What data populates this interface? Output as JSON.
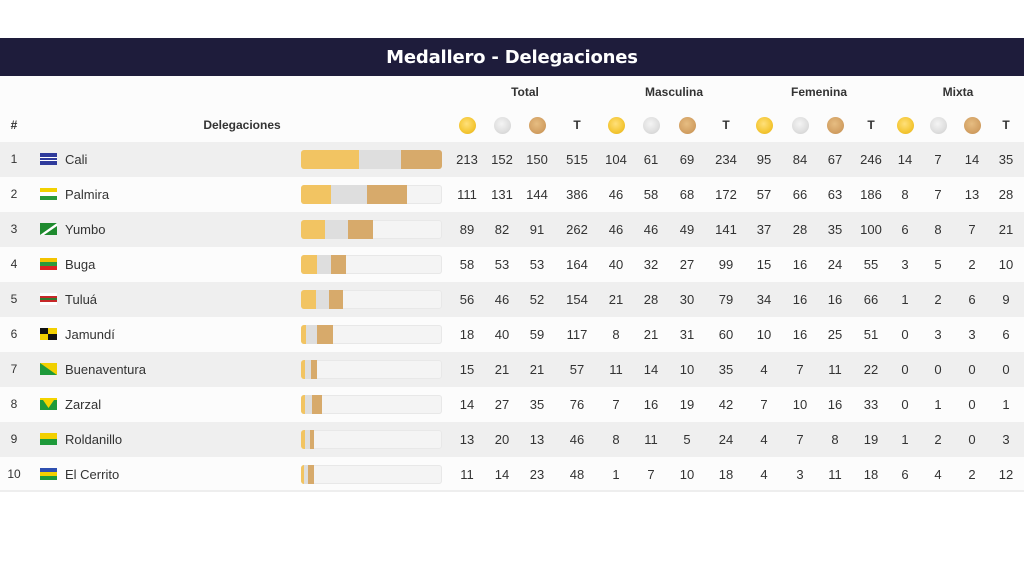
{
  "title": "Medallero - Delegaciones",
  "headers": {
    "rank": "#",
    "delegation": "Delegaciones",
    "groups": [
      "Total",
      "Masculina",
      "Femenina",
      "Mixta"
    ],
    "total_label": "T"
  },
  "colors": {
    "header_bg": "#1e1c3b",
    "gold": "#f2c462",
    "silver": "#dedede",
    "bronze": "#d7aa6b"
  },
  "rows": [
    {
      "rank": "1",
      "name": "Cali",
      "flag": "flag-cali",
      "total": [
        "213",
        "152",
        "150",
        "515"
      ],
      "masc": [
        "104",
        "61",
        "69",
        "234"
      ],
      "fem": [
        "95",
        "84",
        "67",
        "246"
      ],
      "mixta": [
        "14",
        "7",
        "14",
        "35"
      ]
    },
    {
      "rank": "2",
      "name": "Palmira",
      "flag": "flag-palmira",
      "total": [
        "111",
        "131",
        "144",
        "386"
      ],
      "masc": [
        "46",
        "58",
        "68",
        "172"
      ],
      "fem": [
        "57",
        "66",
        "63",
        "186"
      ],
      "mixta": [
        "8",
        "7",
        "13",
        "28"
      ]
    },
    {
      "rank": "3",
      "name": "Yumbo",
      "flag": "flag-yumbo",
      "total": [
        "89",
        "82",
        "91",
        "262"
      ],
      "masc": [
        "46",
        "46",
        "49",
        "141"
      ],
      "fem": [
        "37",
        "28",
        "35",
        "100"
      ],
      "mixta": [
        "6",
        "8",
        "7",
        "21"
      ]
    },
    {
      "rank": "4",
      "name": "Buga",
      "flag": "flag-buga",
      "total": [
        "58",
        "53",
        "53",
        "164"
      ],
      "masc": [
        "40",
        "32",
        "27",
        "99"
      ],
      "fem": [
        "15",
        "16",
        "24",
        "55"
      ],
      "mixta": [
        "3",
        "5",
        "2",
        "10"
      ]
    },
    {
      "rank": "5",
      "name": "Tuluá",
      "flag": "flag-tulua",
      "total": [
        "56",
        "46",
        "52",
        "154"
      ],
      "masc": [
        "21",
        "28",
        "30",
        "79"
      ],
      "fem": [
        "34",
        "16",
        "16",
        "66"
      ],
      "mixta": [
        "1",
        "2",
        "6",
        "9"
      ]
    },
    {
      "rank": "6",
      "name": "Jamundí",
      "flag": "flag-jamundi",
      "total": [
        "18",
        "40",
        "59",
        "117"
      ],
      "masc": [
        "8",
        "21",
        "31",
        "60"
      ],
      "fem": [
        "10",
        "16",
        "25",
        "51"
      ],
      "mixta": [
        "0",
        "3",
        "3",
        "6"
      ]
    },
    {
      "rank": "7",
      "name": "Buenaventura",
      "flag": "flag-buenaventura",
      "total": [
        "15",
        "21",
        "21",
        "57"
      ],
      "masc": [
        "11",
        "14",
        "10",
        "35"
      ],
      "fem": [
        "4",
        "7",
        "11",
        "22"
      ],
      "mixta": [
        "0",
        "0",
        "0",
        "0"
      ]
    },
    {
      "rank": "8",
      "name": "Zarzal",
      "flag": "flag-zarzal",
      "total": [
        "14",
        "27",
        "35",
        "76"
      ],
      "masc": [
        "7",
        "16",
        "19",
        "42"
      ],
      "fem": [
        "7",
        "10",
        "16",
        "33"
      ],
      "mixta": [
        "0",
        "1",
        "0",
        "1"
      ]
    },
    {
      "rank": "9",
      "name": "Roldanillo",
      "flag": "flag-roldanillo",
      "total": [
        "13",
        "20",
        "13",
        "46"
      ],
      "masc": [
        "8",
        "11",
        "5",
        "24"
      ],
      "fem": [
        "4",
        "7",
        "8",
        "19"
      ],
      "mixta": [
        "1",
        "2",
        "0",
        "3"
      ]
    },
    {
      "rank": "10",
      "name": "El Cerrito",
      "flag": "flag-el-cerrito",
      "total": [
        "11",
        "14",
        "23",
        "48"
      ],
      "masc": [
        "1",
        "7",
        "10",
        "18"
      ],
      "fem": [
        "4",
        "3",
        "11",
        "18"
      ],
      "mixta": [
        "6",
        "4",
        "2",
        "12"
      ]
    }
  ]
}
